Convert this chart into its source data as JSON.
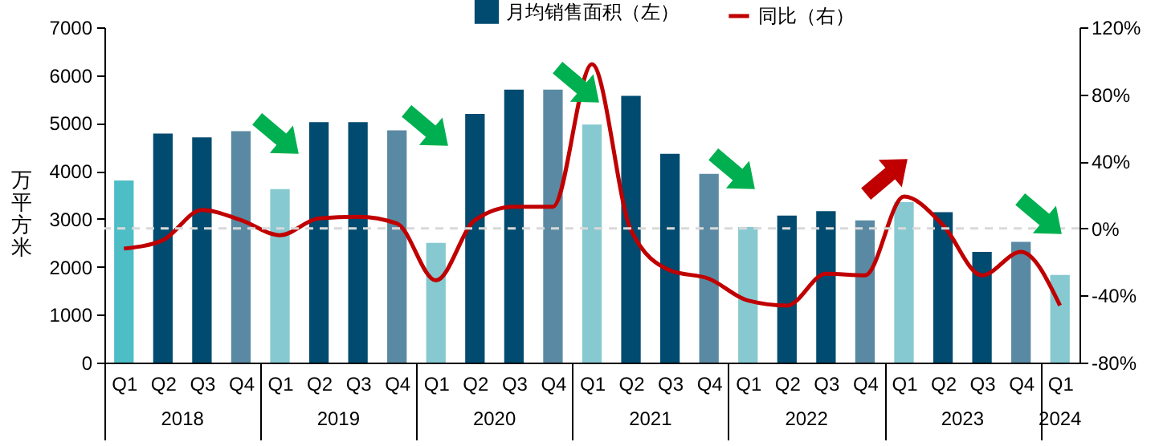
{
  "chart_data": {
    "type": "bar",
    "categories": [
      "Q1",
      "Q2",
      "Q3",
      "Q4",
      "Q1",
      "Q2",
      "Q3",
      "Q4",
      "Q1",
      "Q2",
      "Q3",
      "Q4",
      "Q1",
      "Q2",
      "Q3",
      "Q4",
      "Q1",
      "Q2",
      "Q3",
      "Q4",
      "Q1",
      "Q2",
      "Q3",
      "Q4",
      "Q1"
    ],
    "series": [
      {
        "name": "月均销售面积（左）",
        "color": "#004b6f",
        "colors": [
          "#4dbdc6",
          "#004b6f",
          "#004b6f",
          "#5a8aa3",
          "#86c9d1",
          "#004b6f",
          "#004b6f",
          "#5a8aa3",
          "#86c9d1",
          "#004b6f",
          "#004b6f",
          "#5a8aa3",
          "#86c9d1",
          "#004b6f",
          "#004b6f",
          "#5a8aa3",
          "#86c9d1",
          "#004b6f",
          "#004b6f",
          "#5a8aa3",
          "#86c9d1",
          "#004b6f",
          "#004b6f",
          "#5a8aa3",
          "#86c9d1"
        ],
        "values": [
          3800,
          4780,
          4700,
          4830,
          3620,
          5020,
          5020,
          4850,
          2500,
          5190,
          5700,
          5700,
          4970,
          5570,
          4360,
          3940,
          2830,
          3070,
          3160,
          2970,
          3350,
          3140,
          2310,
          2520,
          1830
        ]
      },
      {
        "name": "同比（右）",
        "type": "line",
        "axis": "y2",
        "color": "#c00000",
        "values": [
          -12,
          -7,
          11,
          5,
          -4,
          6,
          7,
          3,
          -31,
          5,
          13,
          13,
          98,
          -1,
          -25,
          -30,
          -43,
          -46,
          -27,
          -28,
          19,
          2,
          -28,
          -14,
          -46
        ]
      }
    ],
    "ylabel": "万平方米",
    "ylim": [
      0,
      7000
    ],
    "yticks": [
      0,
      1000,
      2000,
      3000,
      4000,
      5000,
      6000,
      7000
    ],
    "y2lim": [
      -80,
      120
    ],
    "y2ticks": [
      {
        "value": -80,
        "label": "-80%"
      },
      {
        "value": -40,
        "label": "-40%"
      },
      {
        "value": 0,
        "label": "0%"
      },
      {
        "value": 40,
        "label": "40%"
      },
      {
        "value": 80,
        "label": "80%"
      },
      {
        "value": 120,
        "label": "120%"
      }
    ],
    "ref_lines": [
      {
        "axis": "y2",
        "value": 0,
        "color": "#d9d9d9",
        "line_style": "dashed"
      }
    ],
    "annotations": [
      "2018",
      "2019",
      "2020",
      "2021",
      "2022",
      "2023",
      "2024"
    ],
    "legend": "top",
    "grid": false,
    "marker": "none"
  }
}
